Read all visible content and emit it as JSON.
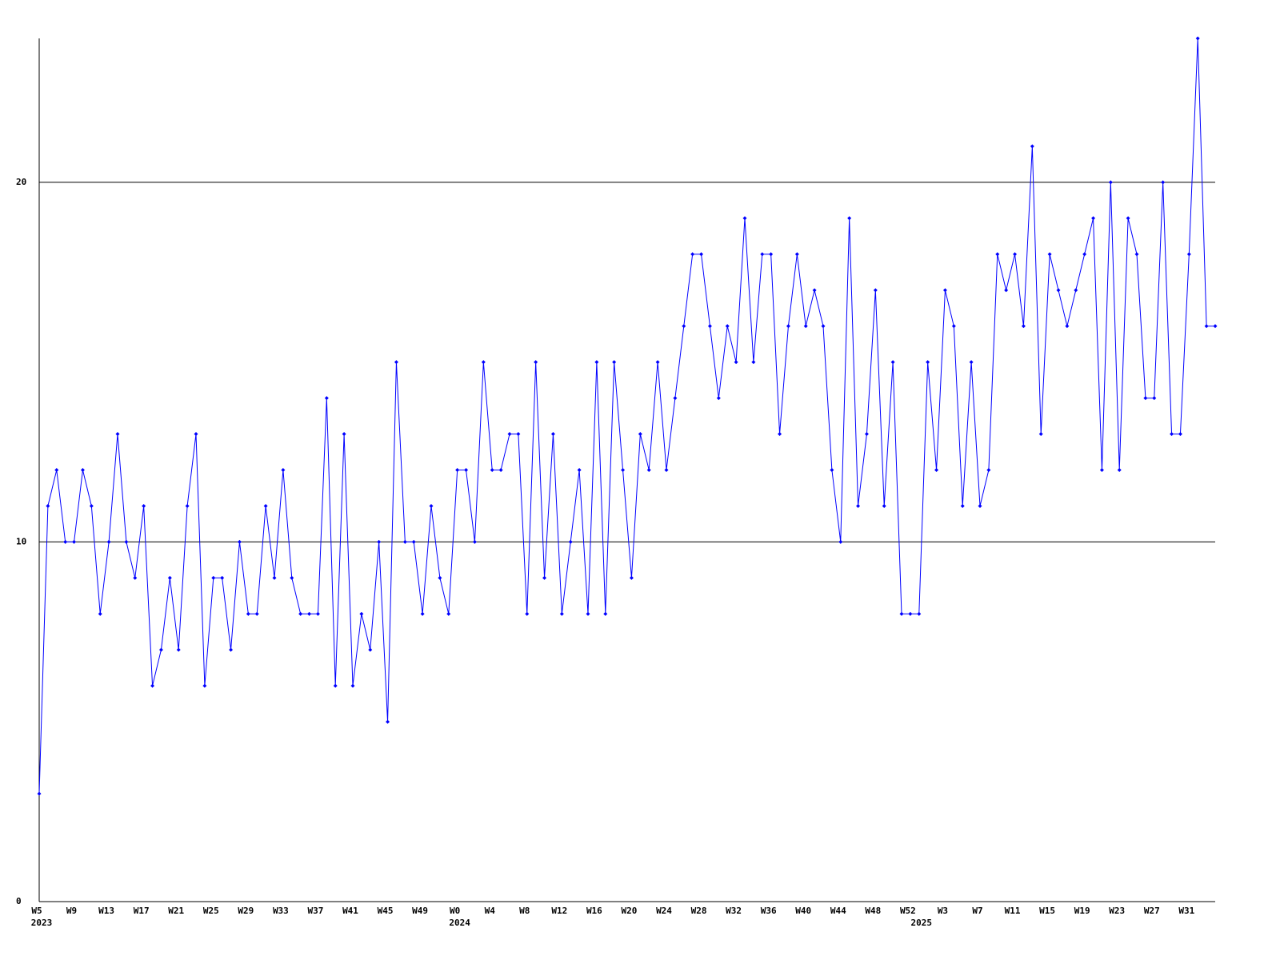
{
  "chart_data": {
    "type": "line",
    "categories": [
      "W5",
      null,
      null,
      null,
      "W9",
      null,
      null,
      null,
      "W13",
      null,
      null,
      null,
      "W17",
      null,
      null,
      null,
      "W21",
      null,
      null,
      null,
      "W25",
      null,
      null,
      null,
      "W29",
      null,
      null,
      null,
      "W33",
      null,
      null,
      null,
      "W37",
      null,
      null,
      null,
      "W41",
      null,
      null,
      null,
      "W45",
      null,
      null,
      null,
      "W49",
      null,
      null,
      null,
      "W0",
      null,
      null,
      null,
      "W4",
      null,
      null,
      null,
      "W8",
      null,
      null,
      null,
      "W12",
      null,
      null,
      null,
      "W16",
      null,
      null,
      null,
      "W20",
      null,
      null,
      null,
      "W24",
      null,
      null,
      null,
      "W28",
      null,
      null,
      null,
      "W32",
      null,
      null,
      null,
      "W36",
      null,
      null,
      null,
      "W40",
      null,
      null,
      null,
      "W44",
      null,
      null,
      null,
      "W48",
      null,
      null,
      null,
      "W52",
      null,
      null,
      null,
      "W3",
      null,
      null,
      null,
      "W7",
      null,
      null,
      null,
      "W11",
      null,
      null,
      null,
      "W15",
      null,
      null,
      null,
      "W19",
      null,
      null,
      null,
      "W23",
      null,
      null,
      null,
      "W27",
      null,
      null,
      null,
      "W31",
      null,
      null,
      null
    ],
    "category_years": [
      "2023",
      null,
      null,
      null,
      null,
      null,
      null,
      null,
      null,
      null,
      null,
      null,
      null,
      null,
      null,
      null,
      null,
      null,
      null,
      null,
      null,
      null,
      null,
      null,
      null,
      null,
      null,
      null,
      null,
      null,
      null,
      null,
      null,
      null,
      null,
      null,
      null,
      null,
      null,
      null,
      null,
      null,
      null,
      null,
      null,
      null,
      null,
      null,
      "2024",
      null,
      null,
      null,
      null,
      null,
      null,
      null,
      null,
      null,
      null,
      null,
      null,
      null,
      null,
      null,
      null,
      null,
      null,
      null,
      null,
      null,
      null,
      null,
      null,
      null,
      null,
      null,
      null,
      null,
      null,
      null,
      null,
      null,
      null,
      null,
      null,
      null,
      null,
      null,
      null,
      null,
      null,
      null,
      null,
      null,
      null,
      null,
      null,
      null,
      null,
      null,
      null,
      "2025",
      null,
      null,
      null,
      null,
      null,
      null,
      null,
      null,
      null,
      null,
      null,
      null,
      null,
      null,
      null,
      null,
      null,
      null,
      null,
      null,
      null,
      null,
      null,
      null,
      null,
      null,
      null,
      null,
      null,
      null,
      null,
      null,
      null,
      null
    ],
    "series": [
      {
        "color": "#0000ff",
        "values": [
          3,
          11,
          12,
          10,
          10,
          12,
          11,
          8,
          10,
          13,
          10,
          9,
          11,
          6,
          7,
          9,
          7,
          11,
          13,
          6,
          9,
          9,
          7,
          10,
          8,
          8,
          11,
          9,
          12,
          9,
          8,
          8,
          8,
          14,
          6,
          13,
          6,
          8,
          7,
          10,
          5,
          15,
          10,
          10,
          8,
          11,
          9,
          8,
          12,
          12,
          10,
          15,
          12,
          12,
          13,
          13,
          8,
          15,
          9,
          13,
          8,
          10,
          12,
          8,
          15,
          8,
          15,
          12,
          9,
          13,
          12,
          15,
          12,
          14,
          16,
          18,
          18,
          16,
          14,
          16,
          15,
          19,
          15,
          18,
          18,
          13,
          16,
          18,
          16,
          17,
          16,
          12,
          10,
          19,
          11,
          13,
          17,
          11,
          15,
          8,
          8,
          8,
          15,
          12,
          17,
          16,
          11,
          15,
          11,
          12,
          18,
          17,
          18,
          16,
          21,
          13,
          18,
          17,
          16,
          17,
          18,
          19,
          12,
          20,
          12,
          19,
          18,
          14,
          14,
          20,
          13,
          13,
          18,
          24,
          16,
          16
        ]
      }
    ],
    "ylim": [
      0,
      24
    ],
    "yticks": [
      0,
      10,
      20
    ],
    "grid": true
  }
}
